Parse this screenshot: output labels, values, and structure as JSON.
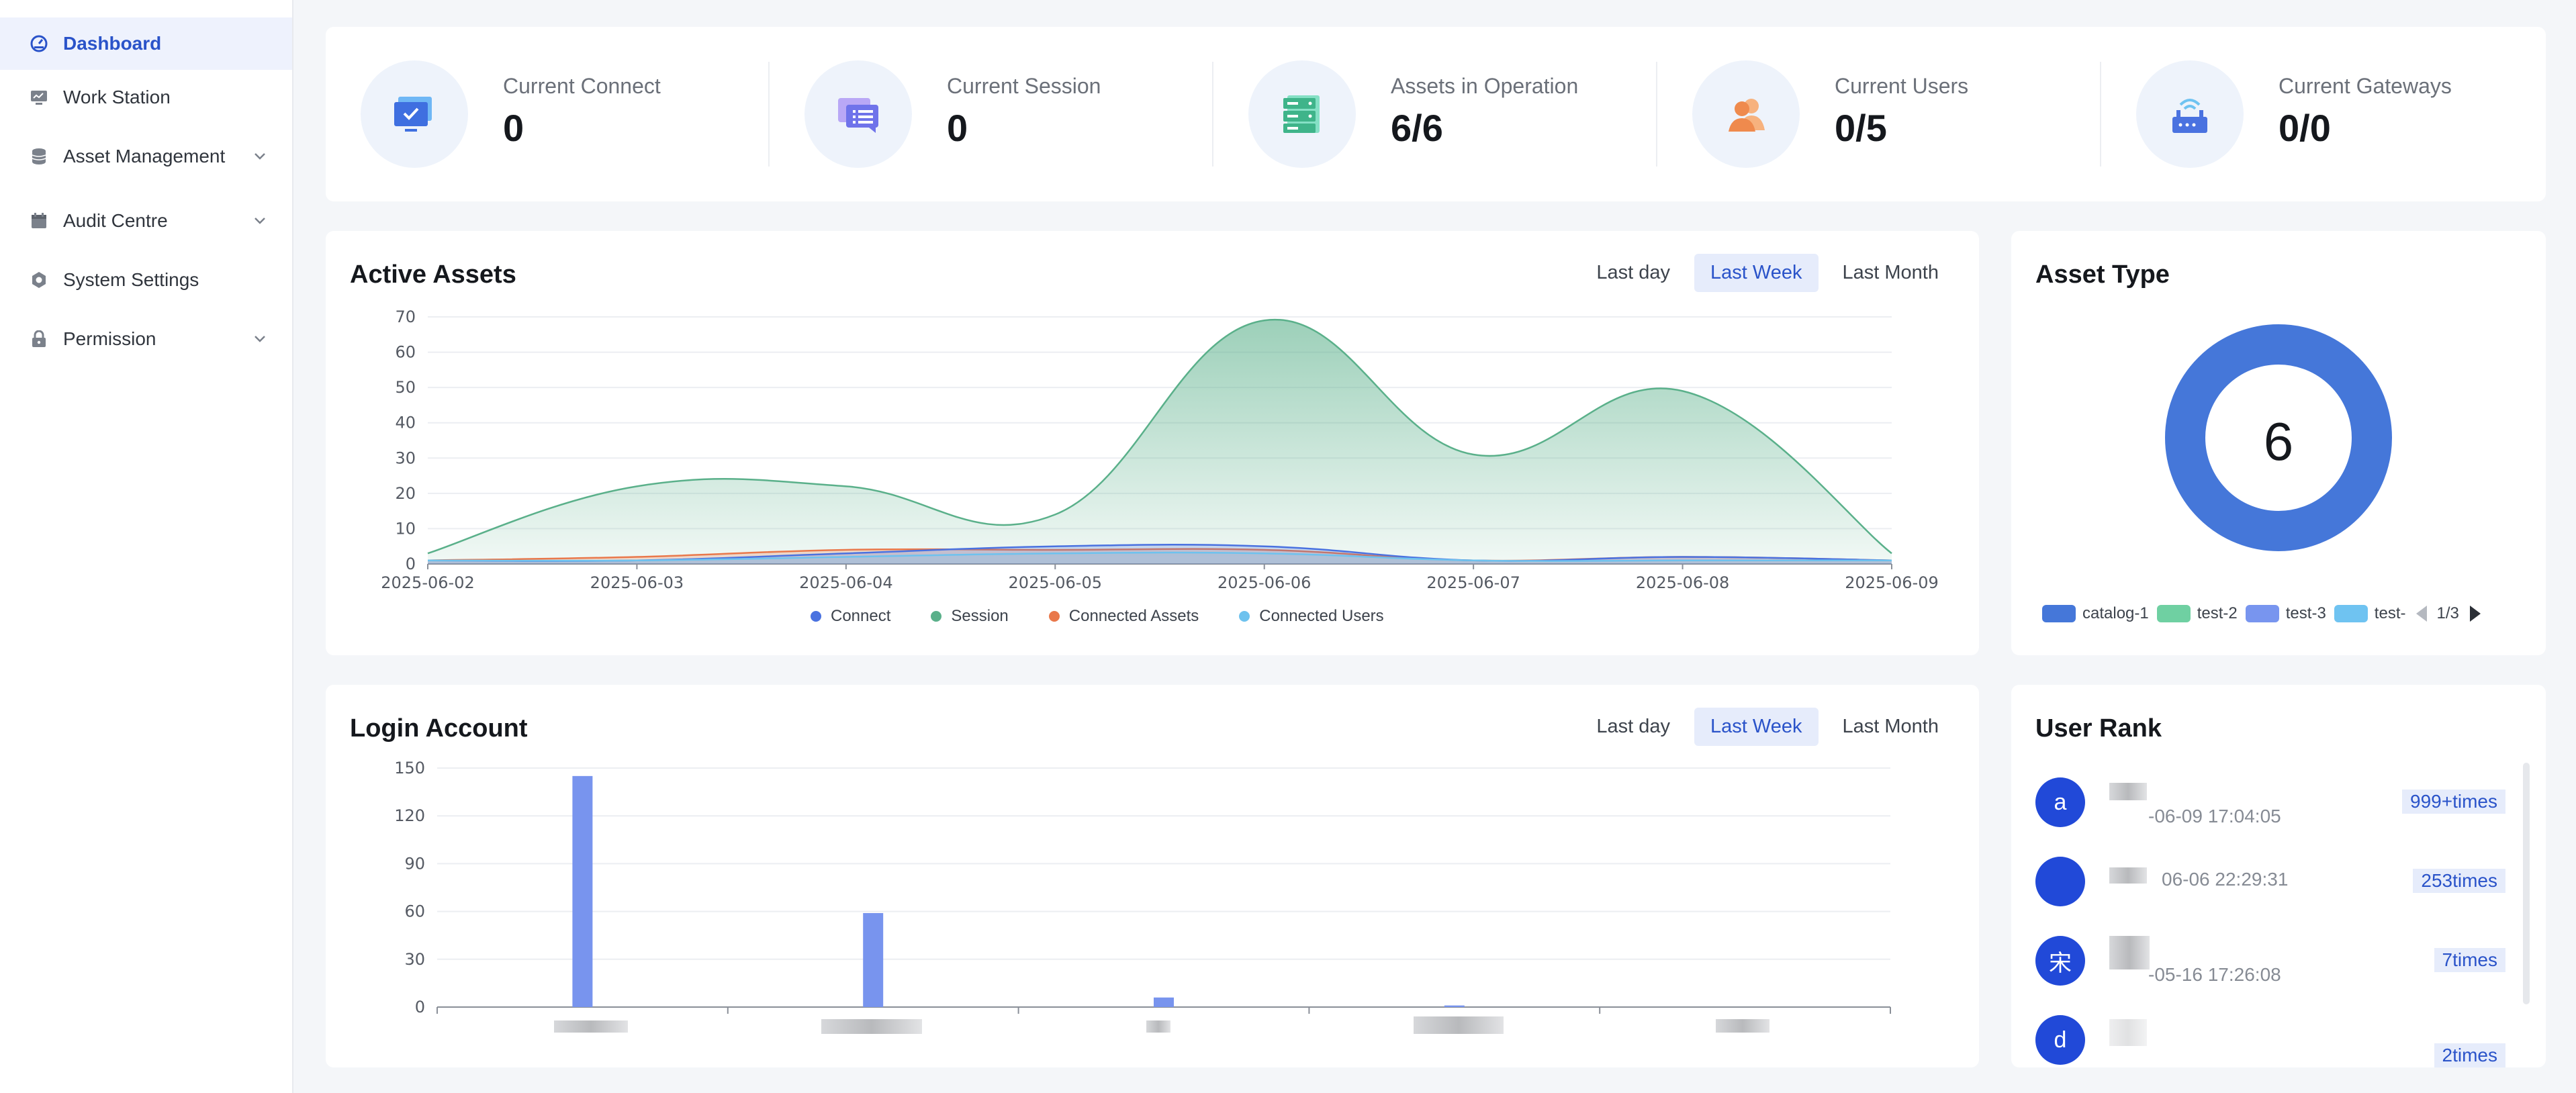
{
  "sidebar": {
    "items": [
      {
        "label": "Dashboard",
        "icon": "dashboard-icon",
        "active": true,
        "expandable": false
      },
      {
        "label": "Work Station",
        "icon": "monitor-icon",
        "active": false,
        "expandable": false
      },
      {
        "label": "Asset Management",
        "icon": "database-icon",
        "active": false,
        "expandable": true
      },
      {
        "label": "Audit Centre",
        "icon": "calendar-icon",
        "active": false,
        "expandable": true
      },
      {
        "label": "System Settings",
        "icon": "gear-icon",
        "active": false,
        "expandable": false
      },
      {
        "label": "Permission",
        "icon": "lock-icon",
        "active": false,
        "expandable": true
      }
    ]
  },
  "stats": [
    {
      "label": "Current Connect",
      "value": "0",
      "icon": "monitor-check-icon"
    },
    {
      "label": "Current Session",
      "value": "0",
      "icon": "chat-list-icon"
    },
    {
      "label": "Assets in Operation",
      "value": "6/6",
      "icon": "server-icon"
    },
    {
      "label": "Current Users",
      "value": "0/5",
      "icon": "users-icon"
    },
    {
      "label": "Current Gateways",
      "value": "0/0",
      "icon": "router-icon"
    }
  ],
  "active_assets": {
    "title": "Active Assets",
    "ranges": [
      "Last day",
      "Last Week",
      "Last Month"
    ],
    "selected_range": "Last Week"
  },
  "login_account": {
    "title": "Login Account",
    "ranges": [
      "Last day",
      "Last Week",
      "Last Month"
    ],
    "selected_range": "Last Week"
  },
  "asset_type": {
    "title": "Asset Type",
    "total": "6",
    "legend": [
      {
        "label": "catalog-1",
        "color": "#4577d9"
      },
      {
        "label": "test-2",
        "color": "#6fd0a2"
      },
      {
        "label": "test-3",
        "color": "#7895ef"
      },
      {
        "label": "test-",
        "color": "#6fc3f1"
      }
    ],
    "page": "1/3"
  },
  "user_rank": {
    "title": "User Rank",
    "rows": [
      {
        "avatar": "a",
        "time": "-06-09 17:04:05",
        "count": "999+times"
      },
      {
        "avatar": "",
        "time": "06-06 22:29:31",
        "count": "253times"
      },
      {
        "avatar": "宋",
        "time": "-05-16 17:26:08",
        "count": "7times"
      },
      {
        "avatar": "d",
        "time": "",
        "count": "2times"
      }
    ]
  },
  "chart_data": [
    {
      "type": "area",
      "title": "Active Assets",
      "x": [
        "2025-06-02",
        "2025-06-03",
        "2025-06-04",
        "2025-06-05",
        "2025-06-06",
        "2025-06-07",
        "2025-06-08",
        "2025-06-09"
      ],
      "ylim": [
        0,
        70
      ],
      "yticks": [
        0,
        10,
        20,
        30,
        40,
        50,
        60,
        70
      ],
      "series": [
        {
          "name": "Connect",
          "color": "#4a72e0",
          "values": [
            1,
            1,
            3,
            5,
            5,
            1,
            2,
            1
          ]
        },
        {
          "name": "Session",
          "color": "#5ab08a",
          "values": [
            3,
            22,
            22,
            14,
            69,
            31,
            49,
            3
          ]
        },
        {
          "name": "Connected Assets",
          "color": "#e9784b",
          "values": [
            1,
            2,
            4,
            4,
            4,
            1,
            2,
            1
          ]
        },
        {
          "name": "Connected Users",
          "color": "#6ec2ee",
          "values": [
            1,
            1,
            2,
            3,
            3,
            1,
            1,
            1
          ]
        }
      ],
      "grid": true,
      "legend": "bottom"
    },
    {
      "type": "bar",
      "title": "Login Account",
      "categories": [
        "",
        "",
        "",
        "",
        ""
      ],
      "values": [
        145,
        59,
        6,
        1,
        0
      ],
      "ylim": [
        0,
        150
      ],
      "yticks": [
        0,
        30,
        60,
        90,
        120,
        150
      ],
      "color": "#7894ee",
      "grid": true
    }
  ]
}
